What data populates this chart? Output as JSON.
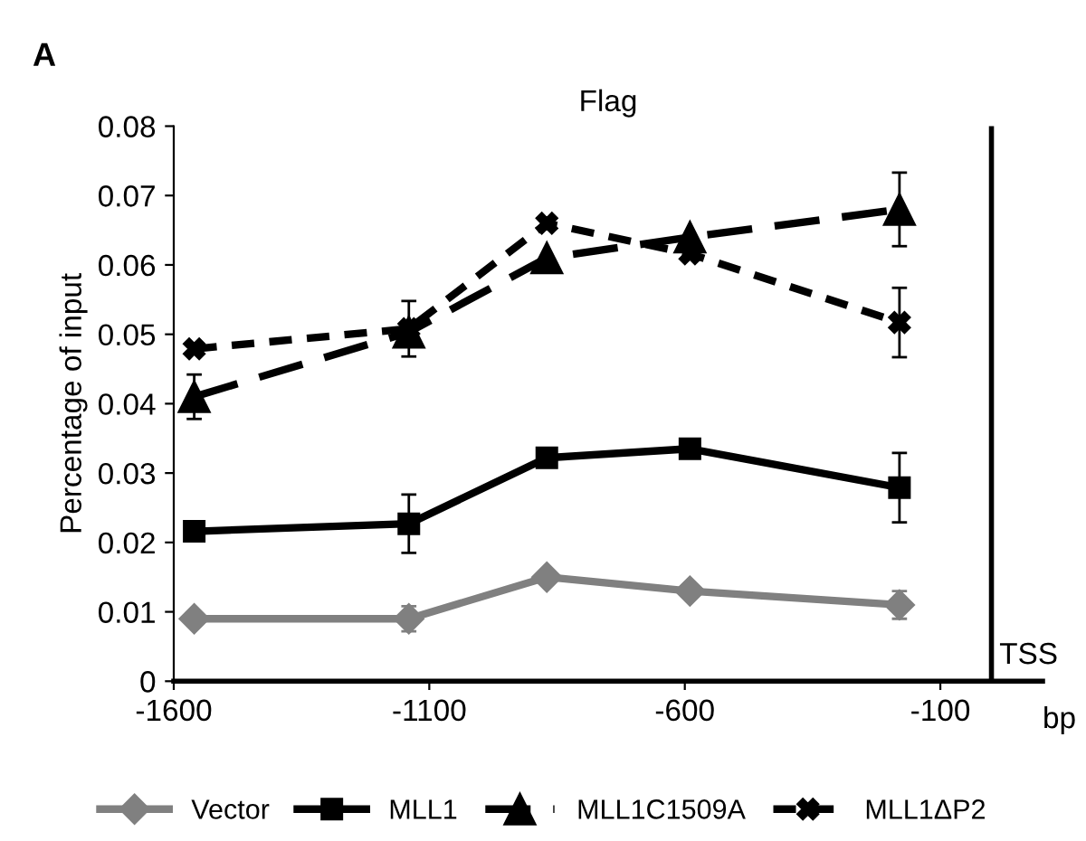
{
  "chart_data": {
    "type": "line",
    "title": "Flag",
    "ylabel": "Percentage of input",
    "xlabel": "bp",
    "annotations": [
      "A"
    ],
    "x": [
      -1560,
      -1140,
      -870,
      -590,
      -180
    ],
    "xlim": [
      -1600,
      100
    ],
    "xticks": [
      -1600,
      -1100,
      -600,
      -100
    ],
    "ylim": [
      0,
      0.08
    ],
    "yticks": [
      0,
      0.01,
      0.02,
      0.03,
      0.04,
      0.05,
      0.06,
      0.07,
      0.08
    ],
    "ref_lines": [
      {
        "axis": "x",
        "value": 0,
        "label": "TSS",
        "color": "#000000"
      }
    ],
    "grid": false,
    "legend": "bottom",
    "series": [
      {
        "name": "Vector",
        "color": "#808080",
        "marker": "diamond",
        "line_style": "solid",
        "values": [
          0.009,
          0.009,
          0.015,
          0.013,
          0.011
        ],
        "errors": [
          null,
          0.0018,
          null,
          null,
          0.002
        ]
      },
      {
        "name": "MLL1",
        "color": "#000000",
        "marker": "square",
        "line_style": "solid",
        "values": [
          0.0216,
          0.0227,
          0.0322,
          0.0335,
          0.0279
        ],
        "errors": [
          null,
          0.0042,
          null,
          null,
          0.005
        ]
      },
      {
        "name": "MLL1C1509A",
        "color": "#000000",
        "marker": "triangle",
        "line_style": "dashed",
        "values": [
          0.041,
          0.0503,
          0.061,
          0.064,
          0.068
        ],
        "errors": [
          0.0032,
          null,
          null,
          null,
          0.0053
        ]
      },
      {
        "name": "MLL1ΔP2",
        "color": "#000000",
        "marker": "cross",
        "line_style": "dotted",
        "values": [
          0.0479,
          0.0508,
          0.066,
          0.0616,
          0.0517
        ],
        "errors": [
          null,
          0.004,
          null,
          null,
          0.005
        ]
      }
    ]
  }
}
